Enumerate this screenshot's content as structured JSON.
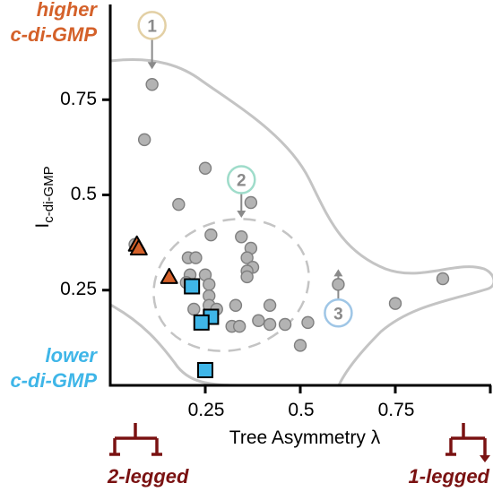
{
  "chart_data": {
    "type": "scatter",
    "xlabel": "Tree Asymmetry λ",
    "ylabel": "I",
    "ylabel_subscript": "c-di-GMP",
    "xlim": [
      0,
      1
    ],
    "ylim": [
      0,
      1
    ],
    "x_ticks": [
      0.25,
      0.5,
      0.75
    ],
    "x_tick_labels": [
      "0.25",
      "0.5",
      "0.75"
    ],
    "y_ticks": [
      0.25,
      0.5,
      0.75
    ],
    "y_tick_labels": [
      "0.25",
      "0.5",
      "0.75"
    ],
    "annotations": {
      "higher_line1": "higher",
      "higher_line2": "c-di-GMP",
      "lower_line1": "lower",
      "lower_line2": "c-di-GMP",
      "two_legged": "2-legged",
      "one_legged": "1-legged"
    },
    "colors": {
      "circle": "#b3b3b3",
      "square": "#3fb6e8",
      "triangle": "#d4612a",
      "higher_text": "#d4612a",
      "lower_text": "#3fb6e8",
      "legged_text": "#7a1212",
      "contour": "#c4c4c4",
      "callout1": "#e3d0a5",
      "callout2": "#9fdcca",
      "callout3": "#9fc6e6"
    },
    "series": [
      {
        "marker": "circle",
        "points": [
          [
            0.11,
            0.79
          ],
          [
            0.09,
            0.645
          ],
          [
            0.25,
            0.57
          ],
          [
            0.18,
            0.475
          ],
          [
            0.37,
            0.48
          ],
          [
            0.265,
            0.395
          ],
          [
            0.345,
            0.39
          ],
          [
            0.065,
            0.37
          ],
          [
            0.37,
            0.36
          ],
          [
            0.205,
            0.335
          ],
          [
            0.225,
            0.335
          ],
          [
            0.36,
            0.335
          ],
          [
            0.375,
            0.31
          ],
          [
            0.36,
            0.3
          ],
          [
            0.21,
            0.29
          ],
          [
            0.25,
            0.29
          ],
          [
            0.36,
            0.285
          ],
          [
            0.2,
            0.27
          ],
          [
            0.26,
            0.265
          ],
          [
            0.26,
            0.235
          ],
          [
            0.26,
            0.21
          ],
          [
            0.33,
            0.21
          ],
          [
            0.42,
            0.21
          ],
          [
            0.22,
            0.2
          ],
          [
            0.28,
            0.2
          ],
          [
            0.39,
            0.17
          ],
          [
            0.42,
            0.16
          ],
          [
            0.46,
            0.16
          ],
          [
            0.52,
            0.165
          ],
          [
            0.32,
            0.155
          ],
          [
            0.34,
            0.155
          ],
          [
            0.5,
            0.105
          ],
          [
            0.6,
            0.265
          ],
          [
            0.75,
            0.215
          ],
          [
            0.875,
            0.28
          ]
        ]
      },
      {
        "marker": "triangle",
        "points": [
          [
            0.07,
            0.37
          ],
          [
            0.075,
            0.36
          ],
          [
            0.155,
            0.285
          ]
        ]
      },
      {
        "marker": "square",
        "points": [
          [
            0.215,
            0.26
          ],
          [
            0.265,
            0.18
          ],
          [
            0.24,
            0.165
          ],
          [
            0.25,
            0.04
          ]
        ]
      }
    ],
    "callouts": [
      {
        "label": "1",
        "from": [
          0.11,
          0.945
        ],
        "to": [
          0.11,
          0.83
        ],
        "color_key": "callout1"
      },
      {
        "label": "2",
        "from": [
          0.345,
          0.54
        ],
        "to": [
          0.345,
          0.44
        ],
        "color_key": "callout2"
      },
      {
        "label": "3",
        "from": [
          0.6,
          0.19
        ],
        "to": [
          0.6,
          0.305
        ],
        "color_key": "callout3"
      }
    ]
  }
}
